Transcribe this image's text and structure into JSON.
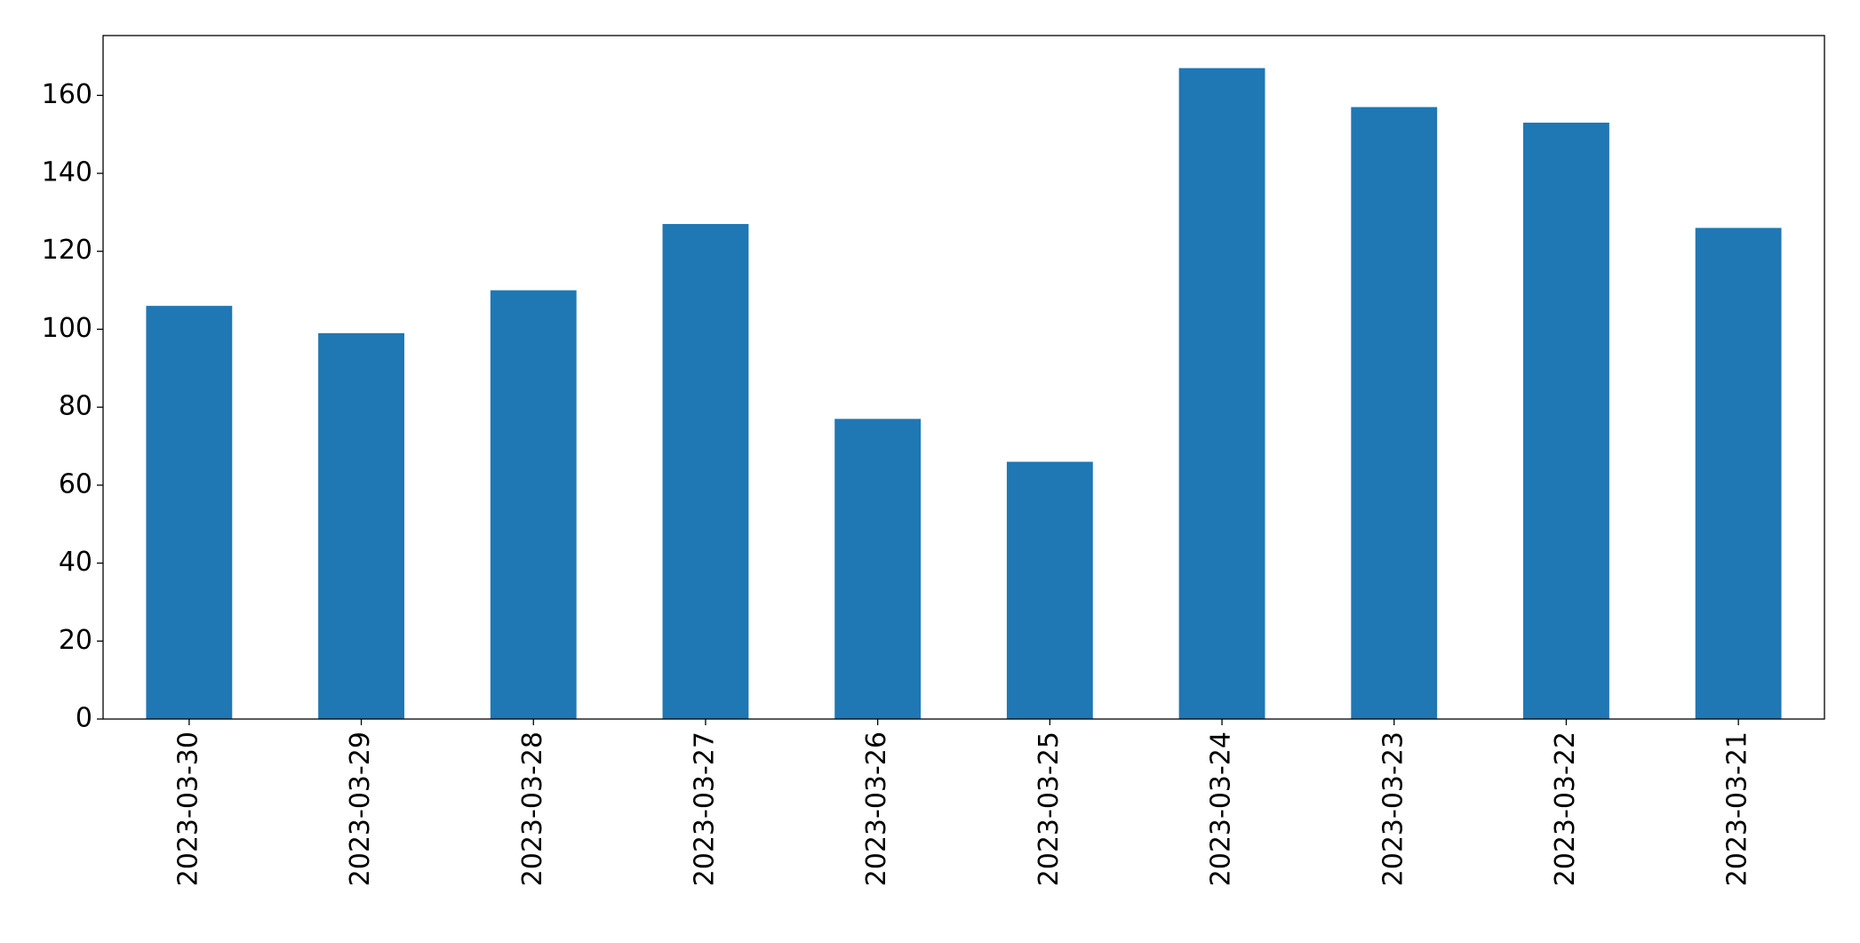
{
  "chart_data": {
    "type": "bar",
    "categories": [
      "2023-03-30",
      "2023-03-29",
      "2023-03-28",
      "2023-03-27",
      "2023-03-26",
      "2023-03-25",
      "2023-03-24",
      "2023-03-23",
      "2023-03-22",
      "2023-03-21"
    ],
    "values": [
      106,
      99,
      110,
      127,
      77,
      66,
      167,
      157,
      153,
      126
    ],
    "color": "#1f77b4",
    "ylim": [
      0,
      175.35
    ],
    "yticks": [
      0,
      20,
      40,
      60,
      80,
      100,
      120,
      140,
      160
    ],
    "grid": false
  }
}
